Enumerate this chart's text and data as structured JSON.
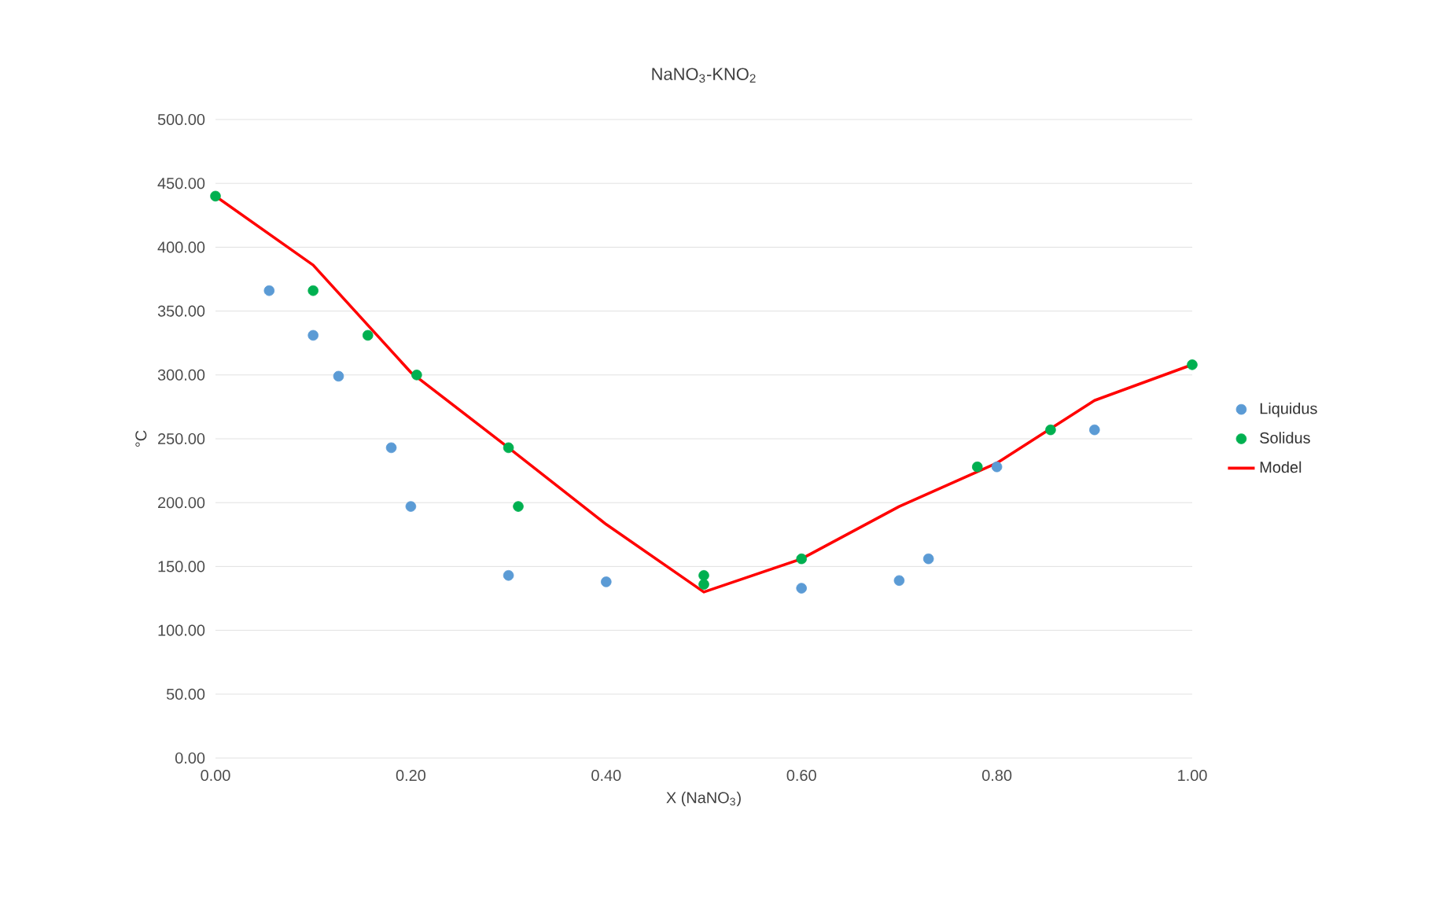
{
  "chart_data": {
    "type": "line",
    "title": "NaNO$_{3}$-KNO$_{2}$",
    "xlabel": "X (NaNO$_{3}$)",
    "ylabel": "°C",
    "xlim": [
      0,
      1
    ],
    "ylim": [
      0,
      500
    ],
    "xticks": [
      {
        "value": 0,
        "label": "0.00"
      },
      {
        "value": 0.2,
        "label": "0.20"
      },
      {
        "value": 0.4,
        "label": "0.40"
      },
      {
        "value": 0.6,
        "label": "0.60"
      },
      {
        "value": 0.8,
        "label": "0.80"
      },
      {
        "value": 1,
        "label": "1.00"
      }
    ],
    "yticks": [
      {
        "value": 0,
        "label": "0.00"
      },
      {
        "value": 50,
        "label": "50.00"
      },
      {
        "value": 100,
        "label": "100.00"
      },
      {
        "value": 150,
        "label": "150.00"
      },
      {
        "value": 200,
        "label": "200.00"
      },
      {
        "value": 250,
        "label": "250.00"
      },
      {
        "value": 300,
        "label": "300.00"
      },
      {
        "value": 350,
        "label": "350.00"
      },
      {
        "value": 400,
        "label": "400.00"
      },
      {
        "value": 450,
        "label": "450.00"
      },
      {
        "value": 500,
        "label": "500.00"
      }
    ],
    "grid": "y",
    "legend": "right",
    "series": [
      {
        "name": "Liquidus",
        "type": "scatter",
        "marker": "circle",
        "color": "#5b9bd5",
        "x": [
          0.055,
          0.1,
          0.126,
          0.18,
          0.2,
          0.3,
          0.4,
          0.6,
          0.7,
          0.73,
          0.8,
          0.9
        ],
        "values": [
          366,
          331,
          299,
          243,
          197,
          143,
          138,
          133,
          139,
          156,
          228,
          257
        ]
      },
      {
        "name": "Solidus",
        "type": "scatter",
        "marker": "circle",
        "color": "#00b050",
        "x": [
          0,
          0.1,
          0.156,
          0.206,
          0.3,
          0.31,
          0.5,
          0.5,
          0.6,
          0.78,
          0.855,
          1.0
        ],
        "values": [
          440,
          366,
          331,
          300,
          243,
          197,
          143,
          136,
          156,
          228,
          257,
          308
        ]
      },
      {
        "name": "Model",
        "marker": "none",
        "color": "#ff0000",
        "x": [
          0,
          0.1,
          0.2,
          0.3,
          0.4,
          0.5,
          0.6,
          0.7,
          0.8,
          0.9,
          1.0
        ],
        "values": [
          440,
          386,
          302,
          243,
          183,
          130,
          156,
          197,
          231,
          280,
          308
        ]
      }
    ]
  }
}
